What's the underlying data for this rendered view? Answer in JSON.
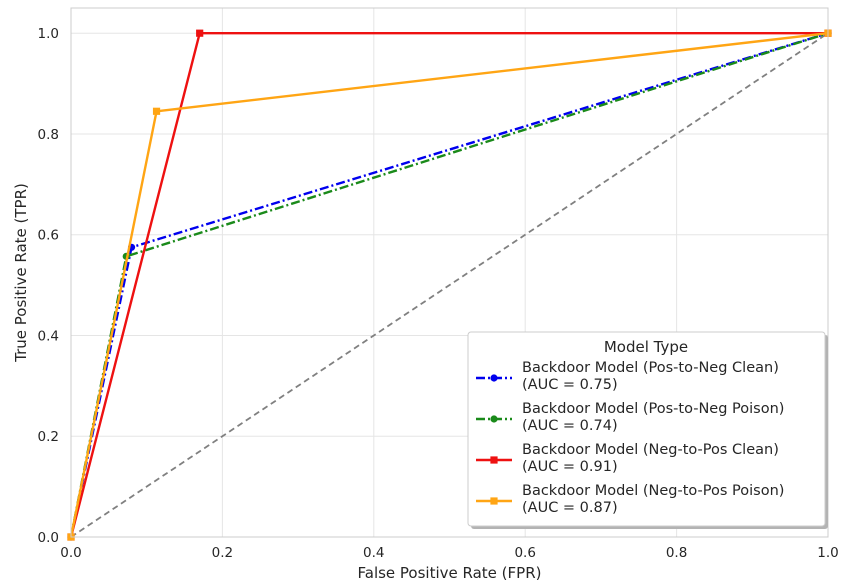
{
  "chart_data": {
    "type": "line",
    "xlabel": "False Positive Rate (FPR)",
    "ylabel": "True Positive Rate (TPR)",
    "xlim": [
      0,
      1
    ],
    "ylim": [
      0,
      1.05
    ],
    "x_ticks": [
      "0.0",
      "0.2",
      "0.4",
      "0.6",
      "0.8",
      "1.0"
    ],
    "y_ticks": [
      "0.0",
      "0.2",
      "0.4",
      "0.6",
      "0.8",
      "1.0"
    ],
    "grid": true,
    "legend": {
      "title": "Model Type",
      "placement": "lower-right"
    },
    "series": [
      {
        "name_lines": [
          "Backdoor Model (Pos-to-Neg Clean)",
          "(AUC = 0.75)"
        ],
        "color": "#0000ee",
        "linestyle": "dashdot",
        "marker": "circle",
        "x": [
          0.0,
          0.08,
          1.0
        ],
        "y": [
          0.0,
          0.575,
          1.0
        ]
      },
      {
        "name_lines": [
          "Backdoor Model (Pos-to-Neg Poison)",
          "(AUC = 0.74)"
        ],
        "color": "#1a8a1a",
        "linestyle": "dashdot",
        "marker": "circle",
        "x": [
          0.0,
          0.073,
          1.0
        ],
        "y": [
          0.0,
          0.557,
          1.0
        ]
      },
      {
        "name_lines": [
          "Backdoor Model (Neg-to-Pos Clean)",
          "(AUC = 0.91)"
        ],
        "color": "#ee1111",
        "linestyle": "solid",
        "marker": "square",
        "x": [
          0.0,
          0.17,
          1.0
        ],
        "y": [
          0.0,
          1.0,
          1.0
        ]
      },
      {
        "name_lines": [
          "Backdoor Model (Neg-to-Pos Poison)",
          "(AUC = 0.87)"
        ],
        "color": "#ffa514",
        "linestyle": "solid",
        "marker": "square",
        "x": [
          0.0,
          0.113,
          1.0
        ],
        "y": [
          0.0,
          0.845,
          1.0
        ]
      }
    ],
    "reference_line": {
      "color": "#808080",
      "linestyle": "dashed",
      "x": [
        0,
        1
      ],
      "y": [
        0,
        1
      ]
    }
  }
}
